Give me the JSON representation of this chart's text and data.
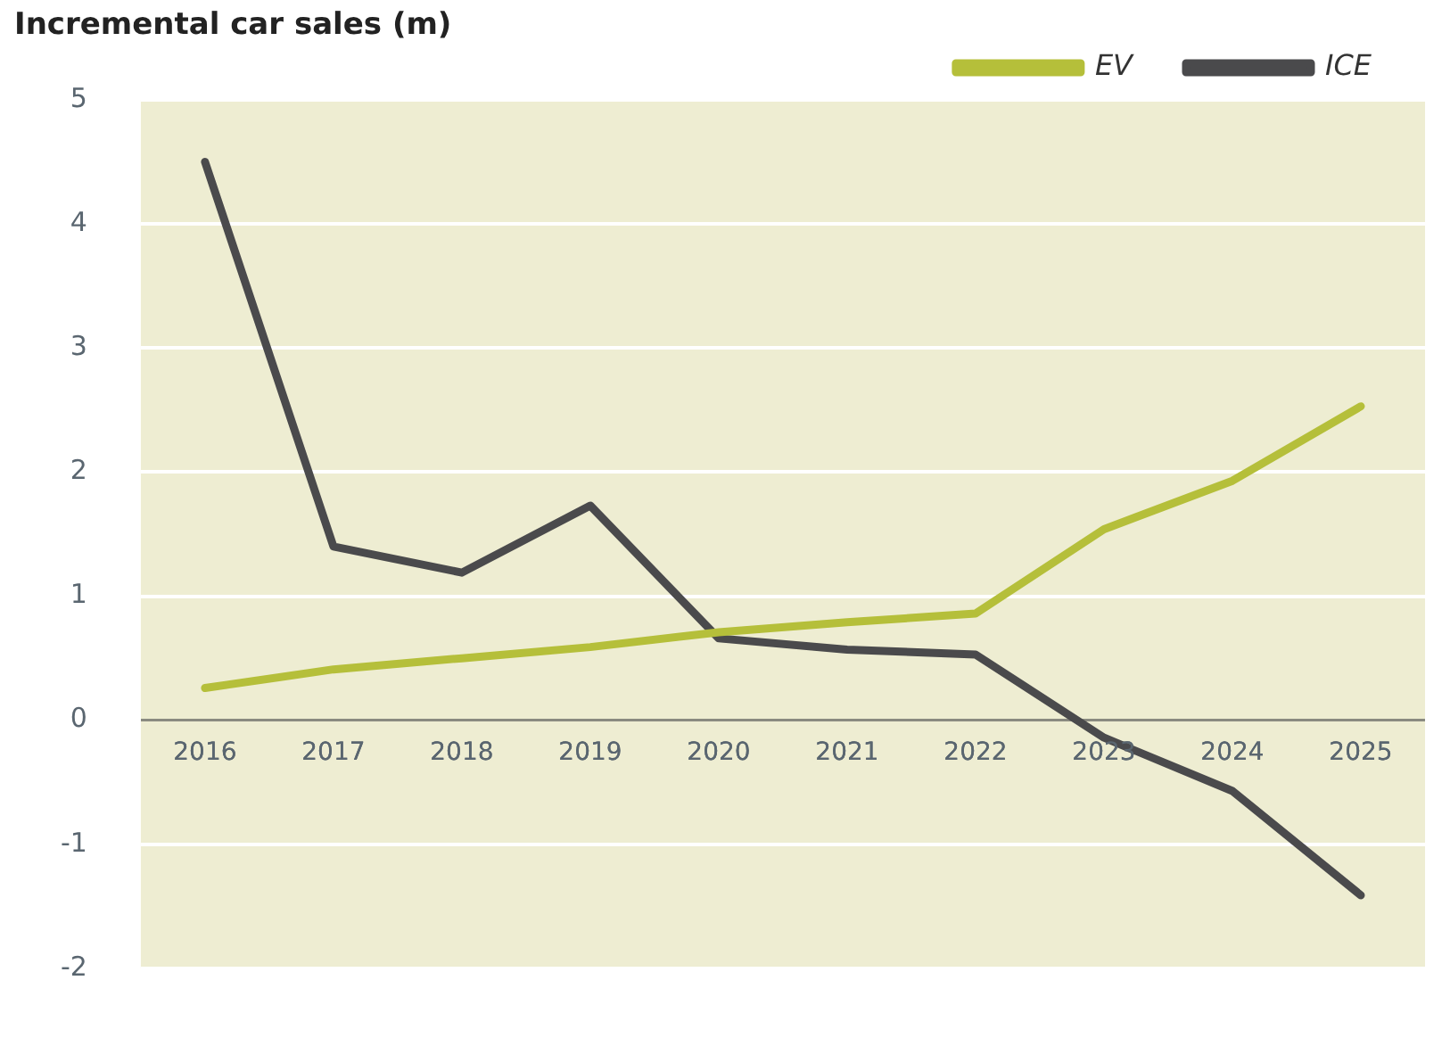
{
  "chart_data": {
    "type": "line",
    "title": "Incremental car sales (m)",
    "categories": [
      "2016",
      "2017",
      "2018",
      "2019",
      "2020",
      "2021",
      "2022",
      "2023",
      "2024",
      "2025"
    ],
    "series": [
      {
        "name": "EV",
        "color": "#b5bf3a",
        "values": [
          0.26,
          0.41,
          0.5,
          0.59,
          0.71,
          0.79,
          0.86,
          1.54,
          1.93,
          2.53
        ]
      },
      {
        "name": "ICE",
        "color": "#4a4a4c",
        "values": [
          4.5,
          1.4,
          1.19,
          1.73,
          0.66,
          0.57,
          0.53,
          -0.14,
          -0.57,
          -1.41
        ]
      }
    ],
    "ylim": [
      -2,
      5
    ],
    "yticks": [
      -2,
      -1,
      0,
      1,
      2,
      3,
      4,
      5
    ],
    "grid": "y",
    "legend": "top right",
    "marker": "none",
    "line_style": "solid"
  }
}
